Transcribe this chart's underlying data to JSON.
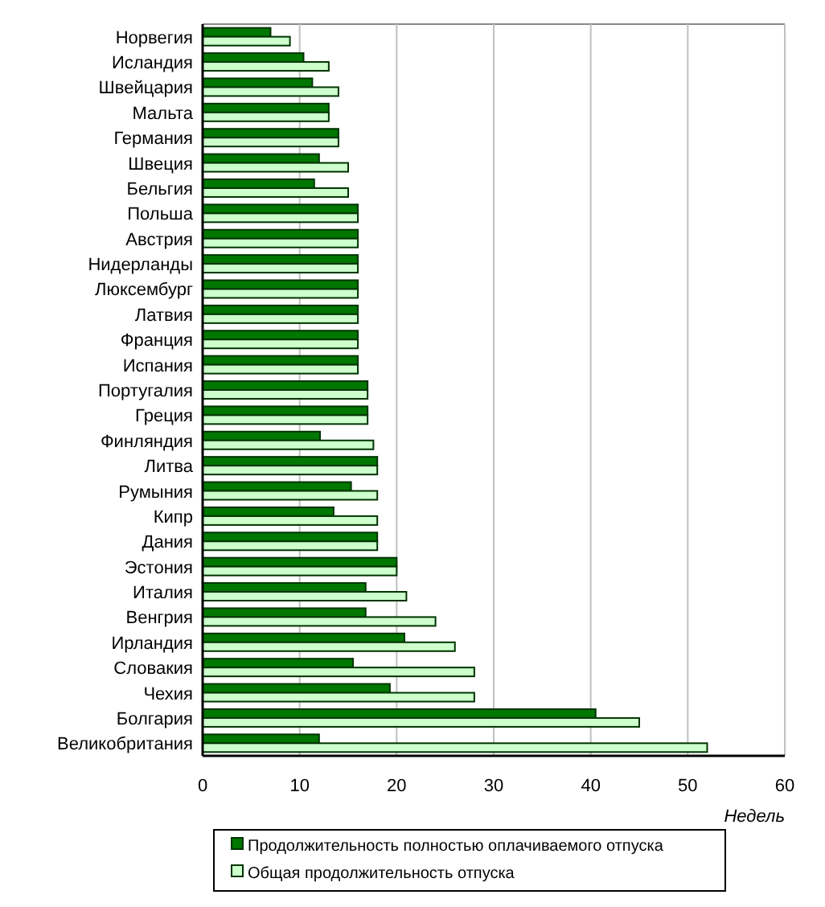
{
  "chart_data": {
    "type": "bar",
    "orientation": "horizontal",
    "xlabel": "Недель",
    "categories": [
      "Норвегия",
      "Исландия",
      "Швейцария",
      "Мальта",
      "Германия",
      "Швеция",
      "Бельгия",
      "Польша",
      "Австрия",
      "Нидерланды",
      "Люксембург",
      "Латвия",
      "Франция",
      "Испания",
      "Португалия",
      "Греция",
      "Финляндия",
      "Литва",
      "Румыния",
      "Кипр",
      "Дания",
      "Эстония",
      "Италия",
      "Венгрия",
      "Ирландия",
      "Словакия",
      "Чехия",
      "Болгария",
      "Великобритания"
    ],
    "series": [
      {
        "name": "Продолжительность полностью оплачиваемого отпуска",
        "color": "#007700",
        "values": [
          7,
          10.4,
          11.3,
          13,
          14,
          12,
          11.5,
          16,
          16,
          16,
          16,
          16,
          16,
          16,
          17,
          17,
          12.1,
          18,
          15.3,
          13.5,
          18,
          20,
          16.8,
          16.8,
          20.8,
          15.5,
          19.3,
          40.5,
          12
        ]
      },
      {
        "name": "Общая продолжительность отпуска",
        "color": "#ccffcc",
        "values": [
          9,
          13,
          14,
          13,
          14,
          15,
          15,
          16,
          16,
          16,
          16,
          16,
          16,
          16,
          17,
          17,
          17.6,
          18,
          18,
          18,
          18,
          20,
          21,
          24,
          26,
          28,
          28,
          45,
          52
        ]
      }
    ],
    "xlim": [
      0,
      60
    ],
    "xticks": [
      0,
      10,
      20,
      30,
      40,
      50,
      60
    ],
    "grid": "x",
    "legend": "bottom"
  }
}
